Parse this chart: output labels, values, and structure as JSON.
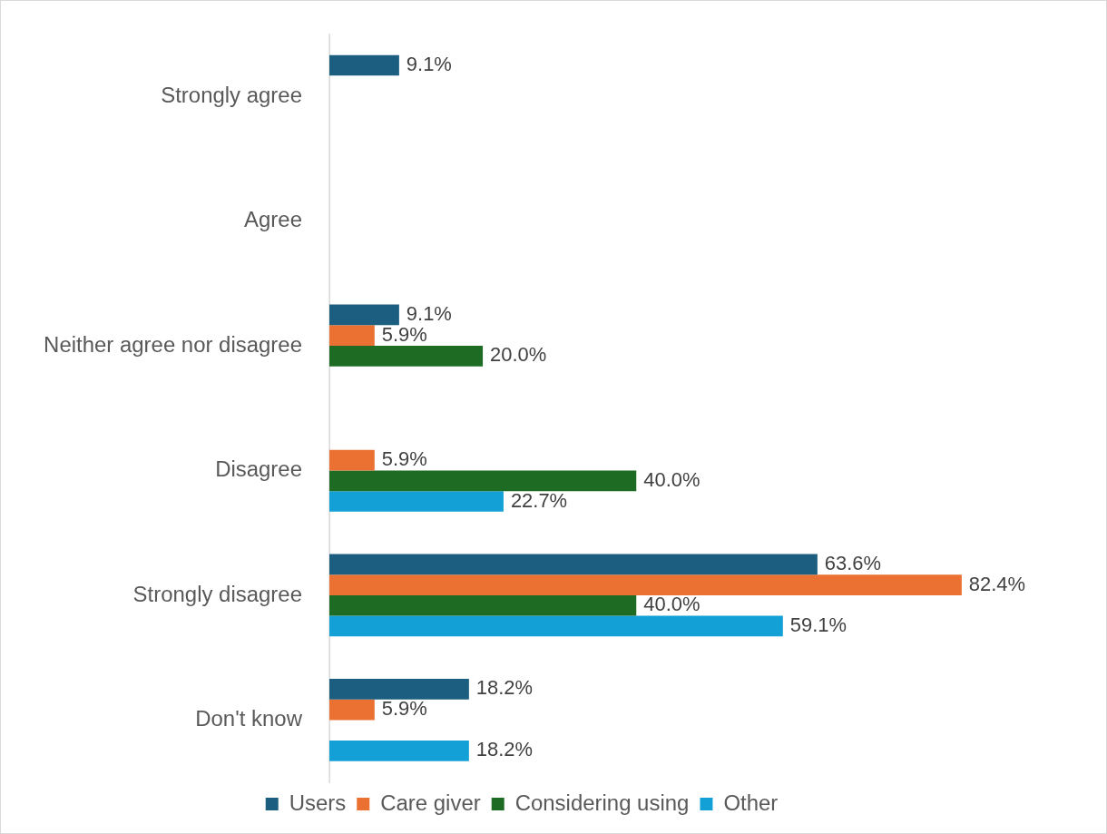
{
  "chart_data": {
    "type": "bar",
    "orientation": "horizontal",
    "categories": [
      "Strongly agree",
      "Agree",
      "Neither agree nor disagree",
      "Disagree",
      "Strongly disagree",
      "Don't know"
    ],
    "series": [
      {
        "name": "Users",
        "color": "#1b5e80",
        "values": [
          9.1,
          null,
          9.1,
          null,
          63.6,
          18.2
        ],
        "value_labels": [
          "9.1%",
          null,
          "9.1%",
          null,
          "63.6%",
          "18.2%"
        ]
      },
      {
        "name": "Care giver",
        "color": "#eb7133",
        "values": [
          null,
          null,
          5.9,
          5.9,
          82.4,
          5.9
        ],
        "value_labels": [
          null,
          null,
          "5.9%",
          "5.9%",
          "82.4%",
          "5.9%"
        ]
      },
      {
        "name": "Considering using",
        "color": "#1e6b24",
        "values": [
          null,
          null,
          20.0,
          40.0,
          40.0,
          null
        ],
        "value_labels": [
          null,
          null,
          "20.0%",
          "40.0%",
          "40.0%",
          null
        ]
      },
      {
        "name": "Other",
        "color": "#12a0d6",
        "values": [
          null,
          null,
          null,
          22.7,
          59.1,
          18.2
        ],
        "value_labels": [
          null,
          null,
          null,
          "22.7%",
          "59.1%",
          "18.2%"
        ]
      }
    ],
    "legend": "bottom"
  }
}
